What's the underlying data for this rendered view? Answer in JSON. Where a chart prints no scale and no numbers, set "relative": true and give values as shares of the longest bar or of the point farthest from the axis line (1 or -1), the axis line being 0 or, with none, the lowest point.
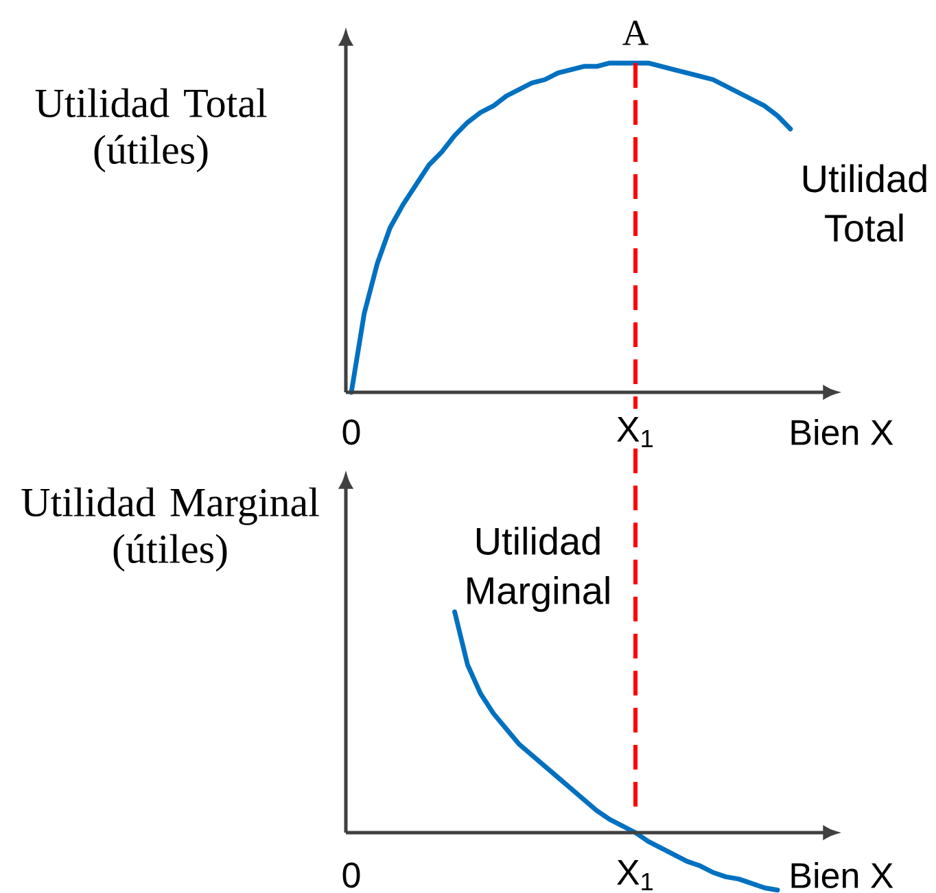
{
  "chart_data": [
    {
      "type": "line",
      "relative": true,
      "ylabel": "Utilidad Total (útiles)",
      "xlabel": "Bien X",
      "categories": [
        "0",
        null,
        null,
        null,
        null,
        null,
        null,
        null,
        null,
        null,
        null,
        null,
        null,
        null,
        null,
        null,
        null,
        null,
        null,
        null,
        null,
        null,
        "X$_{1}$",
        null,
        null,
        null,
        null,
        null,
        null,
        null,
        null,
        null,
        null,
        null,
        null
      ],
      "series": [
        {
          "name": "Utilidad Total",
          "color": "#0070c0",
          "values": [
            0,
            0.24,
            0.39,
            0.5,
            0.57,
            0.63,
            0.69,
            0.73,
            0.78,
            0.82,
            0.85,
            0.87,
            0.9,
            0.92,
            0.94,
            0.95,
            0.97,
            0.98,
            0.99,
            0.99,
            1.0,
            1.0,
            1.0,
            1.0,
            0.99,
            0.98,
            0.97,
            0.96,
            0.95,
            0.93,
            0.91,
            0.89,
            0.87,
            0.84,
            0.8
          ]
        }
      ],
      "ref_lines": [
        {
          "axis": "x",
          "value": "X$_{1}$",
          "label": "A",
          "color": "#ff0000",
          "line_style": "dashed"
        }
      ]
    },
    {
      "type": "line",
      "relative": true,
      "ylabel": "Utilidad Marginal (útiles)",
      "xlabel": "Bien X",
      "categories": [
        "0",
        null,
        null,
        null,
        null,
        null,
        null,
        null,
        null,
        null,
        null,
        null,
        null,
        null,
        null,
        null,
        null,
        null,
        null,
        null,
        null,
        null,
        "X$_{1}$",
        null,
        null,
        null,
        null,
        null,
        null,
        null,
        null,
        null,
        null,
        null
      ],
      "series": [
        {
          "name": "Utilidad Marginal",
          "color": "#0070c0",
          "values": [
            null,
            null,
            null,
            null,
            null,
            null,
            null,
            null,
            1.0,
            0.76,
            0.63,
            0.54,
            0.47,
            0.4,
            0.35,
            0.3,
            0.25,
            0.2,
            0.15,
            0.1,
            0.06,
            0.03,
            0,
            -0.04,
            -0.07,
            -0.1,
            -0.13,
            -0.15,
            -0.18,
            -0.2,
            -0.21,
            -0.23,
            -0.25,
            -0.26
          ]
        }
      ],
      "ref_lines": [
        {
          "axis": "x",
          "value": "X$_{1}$",
          "color": "#ff0000",
          "line_style": "dashed"
        }
      ]
    }
  ]
}
